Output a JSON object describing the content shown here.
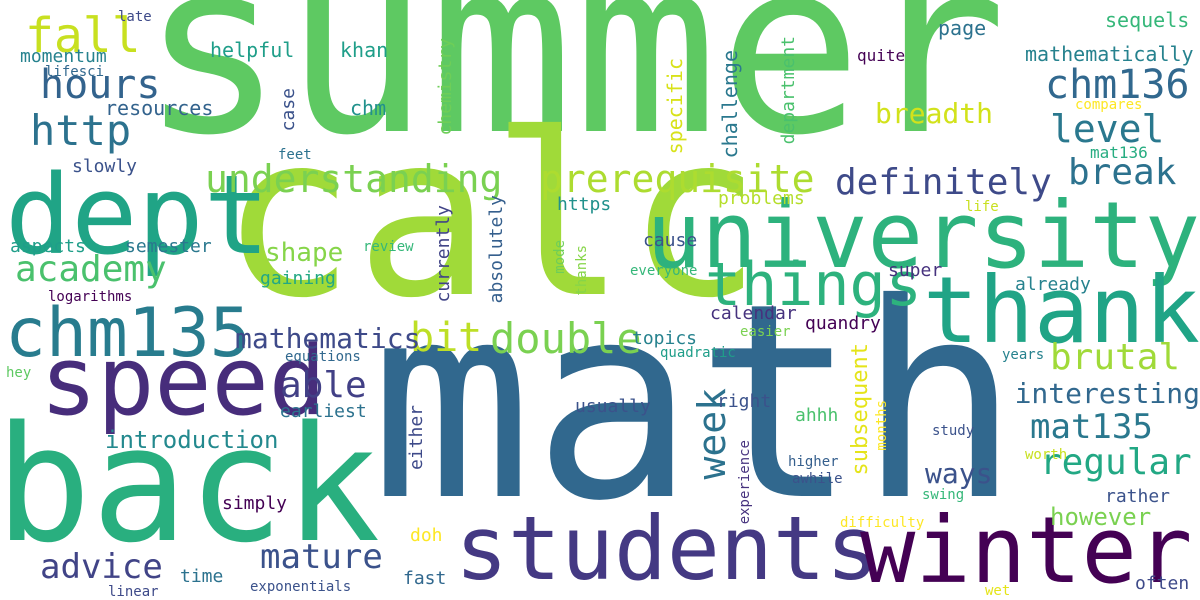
{
  "palette": {
    "viridis_0": "#440154",
    "viridis_1": "#46327e",
    "viridis_2": "#365c8d",
    "viridis_3": "#277f8e",
    "viridis_4": "#1fa187",
    "viridis_5": "#4ac16d",
    "viridis_6": "#a0da39",
    "viridis_7": "#fde725"
  },
  "words": [
    {
      "text": "summer",
      "color": "#5ec962"
    },
    {
      "text": "math",
      "color": "#31688e"
    },
    {
      "text": "calc",
      "color": "#a0da39"
    },
    {
      "text": "back",
      "color": "#29af7f"
    },
    {
      "text": "dept",
      "color": "#20a486"
    },
    {
      "text": "university",
      "color": "#2db27d"
    },
    {
      "text": "thank",
      "color": "#20a486"
    },
    {
      "text": "speed",
      "color": "#472d7b"
    },
    {
      "text": "students",
      "color": "#443983"
    },
    {
      "text": "winter",
      "color": "#440154"
    },
    {
      "text": "chm135",
      "color": "#287c8e"
    },
    {
      "text": "things",
      "color": "#2db27d"
    },
    {
      "text": "prerequisite",
      "color": "#addc30"
    },
    {
      "text": "understanding",
      "color": "#7ad151"
    },
    {
      "text": "definitely",
      "color": "#3e4a89"
    },
    {
      "text": "chm136",
      "color": "#31688e"
    },
    {
      "text": "level",
      "color": "#2a788e"
    },
    {
      "text": "break",
      "color": "#2c728e"
    },
    {
      "text": "fall",
      "color": "#c8e020"
    },
    {
      "text": "hours",
      "color": "#33638d"
    },
    {
      "text": "http",
      "color": "#2c728e"
    },
    {
      "text": "academy",
      "color": "#4ac16d"
    },
    {
      "text": "double",
      "color": "#7ad151"
    },
    {
      "text": "bit",
      "color": "#bddf26"
    },
    {
      "text": "mathematics",
      "color": "#3e4a89"
    },
    {
      "text": "able",
      "color": "#424086"
    },
    {
      "text": "mature",
      "color": "#3b528b"
    },
    {
      "text": "advice",
      "color": "#414487"
    },
    {
      "text": "week",
      "color": "#2c728e"
    },
    {
      "text": "brutal",
      "color": "#a0da39"
    },
    {
      "text": "regular",
      "color": "#22a884"
    },
    {
      "text": "mat135",
      "color": "#2a788e"
    },
    {
      "text": "interesting",
      "color": "#31688e"
    },
    {
      "text": "breadth",
      "color": "#d2e21b"
    },
    {
      "text": "shape",
      "color": "#86d549"
    },
    {
      "text": "introduction",
      "color": "#23898e"
    },
    {
      "text": "ways",
      "color": "#3b528b"
    },
    {
      "text": "subsequent",
      "color": "#e5e419"
    },
    {
      "text": "however",
      "color": "#7ad151"
    },
    {
      "text": "momentum",
      "color": "#26828e"
    },
    {
      "text": "helpful",
      "color": "#1f9e89"
    },
    {
      "text": "khan",
      "color": "#1f9e89"
    },
    {
      "text": "resources",
      "color": "#33638d"
    },
    {
      "text": "chm",
      "color": "#21918c"
    },
    {
      "text": "case",
      "color": "#3b528b"
    },
    {
      "text": "chemistry",
      "color": "#6ece58"
    },
    {
      "text": "specific",
      "color": "#d8e219"
    },
    {
      "text": "challenge",
      "color": "#2a788e"
    },
    {
      "text": "department",
      "color": "#4ac16d"
    },
    {
      "text": "page",
      "color": "#2c728e"
    },
    {
      "text": "sequels",
      "color": "#35b779"
    },
    {
      "text": "mathematically",
      "color": "#26828e"
    },
    {
      "text": "quite",
      "color": "#440154"
    },
    {
      "text": "late",
      "color": "#3e4a89"
    },
    {
      "text": "lifesci",
      "color": "#31688e"
    },
    {
      "text": "slowly",
      "color": "#3b528b"
    },
    {
      "text": "feet",
      "color": "#2c728e"
    },
    {
      "text": "mat136",
      "color": "#27ad81"
    },
    {
      "text": "compares",
      "color": "#fde725"
    },
    {
      "text": "currently",
      "color": "#414487"
    },
    {
      "text": "absolutely",
      "color": "#355f8d"
    },
    {
      "text": "https",
      "color": "#21918c"
    },
    {
      "text": "problems",
      "color": "#b5de2b"
    },
    {
      "text": "life",
      "color": "#c8e020"
    },
    {
      "text": "aspects",
      "color": "#1f9e89"
    },
    {
      "text": "semester",
      "color": "#2a788e"
    },
    {
      "text": "gaining",
      "color": "#22a884"
    },
    {
      "text": "cause",
      "color": "#3b528b"
    },
    {
      "text": "review",
      "color": "#35b779"
    },
    {
      "text": "thanks",
      "color": "#86d549"
    },
    {
      "text": "mode",
      "color": "#6ece58"
    },
    {
      "text": "everyone",
      "color": "#35b779"
    },
    {
      "text": "super",
      "color": "#46327e"
    },
    {
      "text": "already",
      "color": "#26828e"
    },
    {
      "text": "logarithms",
      "color": "#440154"
    },
    {
      "text": "calendar",
      "color": "#46327e"
    },
    {
      "text": "easier",
      "color": "#7ad151"
    },
    {
      "text": "quandry",
      "color": "#440154"
    },
    {
      "text": "topics",
      "color": "#26828e"
    },
    {
      "text": "quadratic",
      "color": "#1f9e89"
    },
    {
      "text": "equations",
      "color": "#31688e"
    },
    {
      "text": "years",
      "color": "#26828e"
    },
    {
      "text": "hey",
      "color": "#5ec962"
    },
    {
      "text": "earliest",
      "color": "#2c728e"
    },
    {
      "text": "usually",
      "color": "#3b528b"
    },
    {
      "text": "right",
      "color": "#3b528b"
    },
    {
      "text": "ahhh",
      "color": "#4ac16d"
    },
    {
      "text": "months",
      "color": "#fde725"
    },
    {
      "text": "either",
      "color": "#3e4a89"
    },
    {
      "text": "study",
      "color": "#3b528b"
    },
    {
      "text": "experience",
      "color": "#46327e"
    },
    {
      "text": "higher",
      "color": "#355f8d"
    },
    {
      "text": "awhile",
      "color": "#3b528b"
    },
    {
      "text": "worth",
      "color": "#c8e020"
    },
    {
      "text": "swing",
      "color": "#35b779"
    },
    {
      "text": "simply",
      "color": "#440154"
    },
    {
      "text": "rather",
      "color": "#3b528b"
    },
    {
      "text": "doh",
      "color": "#fde725"
    },
    {
      "text": "difficulty",
      "color": "#fde725"
    },
    {
      "text": "time",
      "color": "#2c728e"
    },
    {
      "text": "fast",
      "color": "#31688e"
    },
    {
      "text": "linear",
      "color": "#3e4a89"
    },
    {
      "text": "exponentials",
      "color": "#3b528b"
    },
    {
      "text": "wet",
      "color": "#e5e419"
    },
    {
      "text": "often",
      "color": "#3e4a89"
    }
  ]
}
